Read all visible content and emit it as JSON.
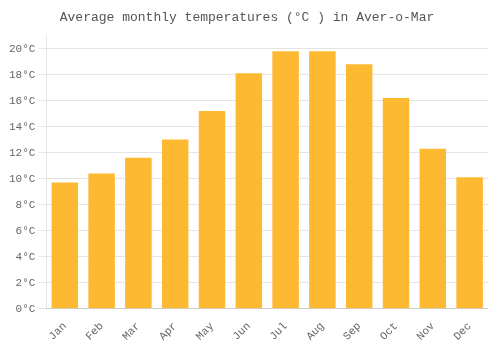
{
  "chart_data": {
    "type": "bar",
    "title": "Average monthly temperatures (°C ) in Aver-o-Mar",
    "categories": [
      "Jan",
      "Feb",
      "Mar",
      "Apr",
      "May",
      "Jun",
      "Jul",
      "Aug",
      "Sep",
      "Oct",
      "Nov",
      "Dec"
    ],
    "values": [
      9.7,
      10.4,
      11.6,
      13.0,
      15.2,
      18.1,
      19.8,
      19.8,
      18.8,
      16.2,
      12.3,
      10.1
    ],
    "color": "#FDB931",
    "ylim": [
      0,
      21
    ],
    "yticks": [
      {
        "value": 0,
        "label": "0°C"
      },
      {
        "value": 2,
        "label": "2°C"
      },
      {
        "value": 4,
        "label": "4°C"
      },
      {
        "value": 6,
        "label": "6°C"
      },
      {
        "value": 8,
        "label": "8°C"
      },
      {
        "value": 10,
        "label": "10°C"
      },
      {
        "value": 12,
        "label": "12°C"
      },
      {
        "value": 14,
        "label": "14°C"
      },
      {
        "value": 16,
        "label": "16°C"
      },
      {
        "value": 18,
        "label": "18°C"
      },
      {
        "value": 20,
        "label": "20°C"
      }
    ],
    "grid": true
  }
}
